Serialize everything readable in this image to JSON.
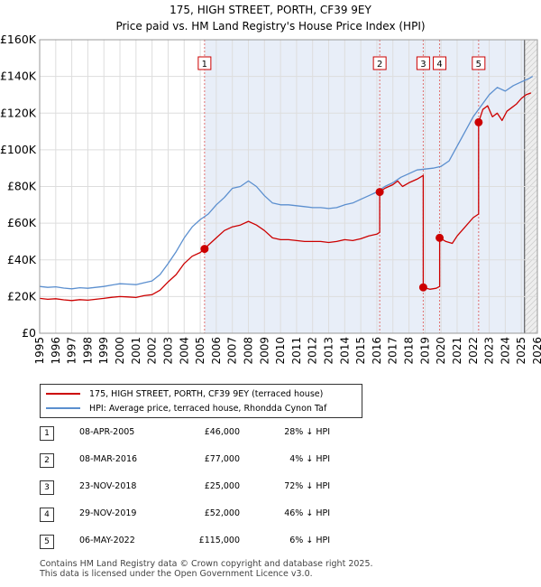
{
  "chart_data": {
    "type": "line",
    "title": "175, HIGH STREET, PORTH, CF39 9EY",
    "subtitle": "Price paid vs. HM Land Registry's House Price Index (HPI)",
    "xlim": [
      1995,
      2026
    ],
    "ylim": [
      0,
      160000
    ],
    "x_ticks": [
      "1995",
      "1996",
      "1997",
      "1998",
      "1999",
      "2000",
      "2001",
      "2002",
      "2003",
      "2004",
      "2005",
      "2006",
      "2007",
      "2008",
      "2009",
      "2010",
      "2011",
      "2012",
      "2013",
      "2014",
      "2015",
      "2016",
      "2017",
      "2018",
      "2019",
      "2020",
      "2021",
      "2022",
      "2023",
      "2024",
      "2025",
      "2026"
    ],
    "y_ticks": [
      {
        "value": 0,
        "label": "£0"
      },
      {
        "value": 20000,
        "label": "£20K"
      },
      {
        "value": 40000,
        "label": "£40K"
      },
      {
        "value": 60000,
        "label": "£60K"
      },
      {
        "value": 80000,
        "label": "£80K"
      },
      {
        "value": 100000,
        "label": "£100K"
      },
      {
        "value": 120000,
        "label": "£120K"
      },
      {
        "value": 140000,
        "label": "£140K"
      },
      {
        "value": 160000,
        "label": "£160K"
      }
    ],
    "grid": true,
    "future_from": 2025.2,
    "series": [
      {
        "name": "175, HIGH STREET, PORTH, CF39 9EY (terraced house)",
        "color": "#cc0000",
        "x": [
          1995.0,
          1995.5,
          1996.0,
          1996.5,
          1997.0,
          1997.5,
          1998.0,
          1998.5,
          1999.0,
          1999.5,
          2000.0,
          2000.5,
          2001.0,
          2001.5,
          2002.0,
          2002.5,
          2003.0,
          2003.5,
          2004.0,
          2004.5,
          2005.0,
          2005.27,
          2005.27,
          2005.5,
          2006.0,
          2006.5,
          2007.0,
          2007.5,
          2008.0,
          2008.5,
          2009.0,
          2009.5,
          2010.0,
          2010.5,
          2011.0,
          2011.5,
          2012.0,
          2012.5,
          2013.0,
          2013.5,
          2014.0,
          2014.5,
          2015.0,
          2015.5,
          2016.0,
          2016.18,
          2016.18,
          2016.5,
          2017.0,
          2017.3,
          2017.6,
          2018.0,
          2018.5,
          2018.89,
          2018.89,
          2019.3,
          2019.7,
          2019.91,
          2019.91,
          2020.3,
          2020.7,
          2021.0,
          2021.5,
          2022.0,
          2022.34,
          2022.34,
          2022.6,
          2022.9,
          2023.2,
          2023.5,
          2023.8,
          2024.1,
          2024.4,
          2024.7,
          2025.0,
          2025.3,
          2025.6
        ],
        "y": [
          19000,
          18500,
          18800,
          18200,
          17800,
          18300,
          18000,
          18500,
          19000,
          19600,
          20000,
          19800,
          19500,
          20500,
          21000,
          23500,
          28000,
          32000,
          38000,
          42000,
          44000,
          46000,
          46000,
          48000,
          52000,
          56000,
          58000,
          59000,
          61000,
          59000,
          56000,
          52000,
          51000,
          51000,
          50500,
          50000,
          50000,
          50000,
          49500,
          50000,
          51000,
          50500,
          51500,
          53000,
          54000,
          55000,
          77000,
          79000,
          81000,
          83000,
          80000,
          82000,
          84000,
          86000,
          25000,
          24000,
          24500,
          25500,
          52000,
          50000,
          49000,
          53000,
          58000,
          63000,
          65000,
          115000,
          122000,
          124000,
          118000,
          120000,
          116000,
          121000,
          123000,
          125000,
          128000,
          130000,
          131000
        ]
      },
      {
        "name": "HPI: Average price, terraced house, Rhondda Cynon Taf",
        "color": "#5b8fcf",
        "x": [
          1995.0,
          1995.5,
          1996.0,
          1996.5,
          1997.0,
          1997.5,
          1998.0,
          1998.5,
          1999.0,
          1999.5,
          2000.0,
          2000.5,
          2001.0,
          2001.5,
          2002.0,
          2002.5,
          2003.0,
          2003.5,
          2004.0,
          2004.5,
          2005.0,
          2005.5,
          2006.0,
          2006.5,
          2007.0,
          2007.5,
          2008.0,
          2008.5,
          2009.0,
          2009.5,
          2010.0,
          2010.5,
          2011.0,
          2011.5,
          2012.0,
          2012.5,
          2013.0,
          2013.5,
          2014.0,
          2014.5,
          2015.0,
          2015.5,
          2016.0,
          2016.5,
          2017.0,
          2017.5,
          2018.0,
          2018.5,
          2019.0,
          2019.5,
          2020.0,
          2020.5,
          2021.0,
          2021.5,
          2022.0,
          2022.5,
          2023.0,
          2023.5,
          2024.0,
          2024.5,
          2025.0,
          2025.5,
          2025.7
        ],
        "y": [
          25500,
          25000,
          25300,
          24600,
          24200,
          24800,
          24500,
          25000,
          25500,
          26300,
          27000,
          26800,
          26500,
          27500,
          28500,
          32000,
          38000,
          44500,
          52000,
          58000,
          62000,
          65000,
          70000,
          74000,
          79000,
          80000,
          83000,
          80000,
          75000,
          71000,
          70000,
          70000,
          69500,
          69000,
          68500,
          68500,
          68000,
          68500,
          70000,
          71000,
          73000,
          75000,
          77000,
          80000,
          82000,
          85000,
          87000,
          89000,
          89500,
          90000,
          91000,
          94000,
          102000,
          110000,
          118000,
          124000,
          130000,
          134000,
          132000,
          135000,
          137000,
          139000,
          140000
        ]
      }
    ],
    "sales": [
      {
        "n": "1",
        "x": 2005.27,
        "value": 46000,
        "date": "08-APR-2005",
        "price": "£46,000",
        "pct": "28% ↓ HPI"
      },
      {
        "n": "2",
        "x": 2016.18,
        "value": 77000,
        "date": "08-MAR-2016",
        "price": "£77,000",
        "pct": "4% ↓ HPI"
      },
      {
        "n": "3",
        "x": 2018.89,
        "value": 25000,
        "date": "23-NOV-2018",
        "price": "£25,000",
        "pct": "72% ↓ HPI"
      },
      {
        "n": "4",
        "x": 2019.91,
        "value": 52000,
        "date": "29-NOV-2019",
        "price": "£52,000",
        "pct": "46% ↓ HPI"
      },
      {
        "n": "5",
        "x": 2022.34,
        "value": 115000,
        "date": "06-MAY-2022",
        "price": "£115,000",
        "pct": "6% ↓ HPI"
      }
    ]
  },
  "legend": {
    "property_label": "175, HIGH STREET, PORTH, CF39 9EY (terraced house)",
    "hpi_label": "HPI: Average price, terraced house, Rhondda Cynon Taf"
  },
  "footer": {
    "line1": "Contains HM Land Registry data © Crown copyright and database right 2025.",
    "line2": "This data is licensed under the Open Government Licence v3.0."
  }
}
